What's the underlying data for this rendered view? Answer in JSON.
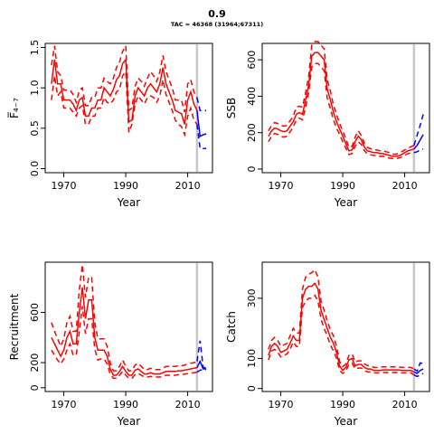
{
  "title": "0.9",
  "subtitle": "TAC = 46368 (31964;67311)",
  "colors": {
    "estimate": "#ff0000",
    "forecast": "#0000ff",
    "vline": "#c8c8c8",
    "axis": "#000000"
  },
  "chart_data": [
    {
      "type": "line",
      "xlabel": "Year",
      "ylabel": "F̅₄₋₇",
      "xlim": [
        1964,
        2018
      ],
      "ylim": [
        -0.05,
        1.55
      ],
      "xticks": [
        1970,
        1990,
        2010
      ],
      "yticks": [
        0.0,
        0.5,
        1.0,
        1.5
      ],
      "ytick_labels": [
        "0.0",
        "0.5",
        "1.0",
        "1.5"
      ],
      "vline": 2013,
      "series": [
        {
          "role": "estimate",
          "x": [
            1966,
            1967,
            1968,
            1969,
            1970,
            1971,
            1972,
            1973,
            1974,
            1975,
            1976,
            1977,
            1978,
            1979,
            1980,
            1981,
            1982,
            1983,
            1984,
            1985,
            1986,
            1987,
            1988,
            1989,
            1990,
            1991,
            1992,
            1993,
            1994,
            1995,
            1996,
            1997,
            1998,
            1999,
            2000,
            2001,
            2002,
            2003,
            2004,
            2005,
            2006,
            2007,
            2008,
            2009,
            2010,
            2011,
            2012,
            2013
          ],
          "y": [
            1.05,
            1.35,
            1.05,
            1.05,
            0.85,
            0.85,
            0.85,
            0.8,
            0.72,
            0.85,
            0.88,
            0.65,
            0.65,
            0.75,
            0.75,
            0.85,
            0.85,
            1.0,
            0.95,
            0.9,
            0.98,
            1.1,
            1.15,
            1.3,
            1.35,
            0.58,
            0.6,
            0.9,
            1.0,
            0.95,
            0.9,
            1.0,
            1.05,
            1.0,
            0.95,
            1.05,
            1.25,
            1.05,
            0.95,
            0.85,
            0.72,
            0.7,
            0.68,
            0.55,
            0.85,
            0.95,
            0.8,
            0.72
          ],
          "lower": [
            0.85,
            1.15,
            0.9,
            0.95,
            0.75,
            0.75,
            0.75,
            0.7,
            0.65,
            0.75,
            0.78,
            0.55,
            0.55,
            0.65,
            0.65,
            0.75,
            0.75,
            0.88,
            0.82,
            0.8,
            0.85,
            0.95,
            0.98,
            1.15,
            1.2,
            0.45,
            0.55,
            0.8,
            0.9,
            0.85,
            0.8,
            0.88,
            0.9,
            0.88,
            0.82,
            0.9,
            1.1,
            0.92,
            0.82,
            0.72,
            0.6,
            0.55,
            0.52,
            0.42,
            0.65,
            0.75,
            0.6,
            0.55
          ],
          "upper": [
            1.28,
            1.52,
            1.2,
            1.15,
            0.97,
            0.97,
            0.97,
            0.92,
            0.82,
            0.97,
            1.0,
            0.78,
            0.78,
            0.88,
            0.88,
            1.0,
            1.0,
            1.12,
            1.08,
            1.05,
            1.12,
            1.25,
            1.32,
            1.45,
            1.52,
            0.72,
            0.75,
            1.02,
            1.12,
            1.08,
            1.02,
            1.12,
            1.2,
            1.15,
            1.08,
            1.2,
            1.4,
            1.2,
            1.1,
            1.0,
            0.85,
            0.85,
            0.85,
            0.7,
            1.05,
            1.1,
            0.95,
            0.88
          ]
        },
        {
          "role": "forecast",
          "x": [
            2013,
            2014,
            2015,
            2016
          ],
          "y": [
            0.72,
            0.4,
            0.42,
            0.43
          ],
          "lower": [
            0.55,
            0.25,
            0.25,
            0.25
          ],
          "upper": [
            0.88,
            0.72,
            0.72,
            0.72
          ]
        }
      ]
    },
    {
      "type": "line",
      "xlabel": "Year",
      "ylabel": "SSB",
      "xlim": [
        1964,
        2018
      ],
      "ylim": [
        -20,
        690
      ],
      "xticks": [
        1970,
        1990,
        2010
      ],
      "yticks": [
        0,
        200,
        400,
        600
      ],
      "ytick_labels": [
        "0",
        "200",
        "400",
        "600"
      ],
      "vline": 2013,
      "series": [
        {
          "role": "estimate",
          "x": [
            1966,
            1967,
            1968,
            1969,
            1970,
            1971,
            1972,
            1973,
            1974,
            1975,
            1976,
            1977,
            1978,
            1979,
            1980,
            1981,
            1982,
            1983,
            1984,
            1985,
            1986,
            1987,
            1988,
            1989,
            1990,
            1991,
            1992,
            1993,
            1994,
            1995,
            1996,
            1997,
            1998,
            1999,
            2000,
            2001,
            2002,
            2003,
            2004,
            2005,
            2006,
            2007,
            2008,
            2009,
            2010,
            2011,
            2012,
            2013
          ],
          "y": [
            180,
            210,
            225,
            220,
            210,
            205,
            210,
            235,
            260,
            300,
            310,
            300,
            380,
            460,
            620,
            640,
            640,
            620,
            600,
            440,
            380,
            310,
            260,
            220,
            180,
            140,
            100,
            105,
            150,
            180,
            160,
            120,
            100,
            95,
            90,
            90,
            85,
            85,
            80,
            75,
            70,
            70,
            72,
            80,
            90,
            100,
            105,
            110
          ],
          "lower": [
            150,
            180,
            195,
            190,
            180,
            175,
            180,
            205,
            230,
            270,
            280,
            270,
            340,
            420,
            560,
            580,
            580,
            560,
            540,
            390,
            330,
            270,
            225,
            190,
            150,
            115,
            80,
            85,
            125,
            150,
            135,
            100,
            82,
            78,
            75,
            75,
            70,
            70,
            65,
            60,
            58,
            58,
            60,
            66,
            75,
            85,
            88,
            90
          ],
          "upper": [
            210,
            240,
            255,
            250,
            240,
            235,
            240,
            265,
            290,
            340,
            345,
            340,
            420,
            510,
            680,
            700,
            700,
            680,
            660,
            490,
            430,
            350,
            300,
            250,
            210,
            165,
            120,
            125,
            175,
            210,
            185,
            140,
            118,
            112,
            105,
            105,
            100,
            100,
            95,
            90,
            82,
            82,
            85,
            95,
            105,
            115,
            122,
            130
          ]
        },
        {
          "role": "forecast",
          "x": [
            2013,
            2014,
            2015,
            2016
          ],
          "y": [
            110,
            130,
            160,
            190
          ],
          "lower": [
            90,
            95,
            105,
            110
          ],
          "upper": [
            130,
            185,
            240,
            300
          ]
        }
      ]
    },
    {
      "type": "line",
      "xlabel": "Year",
      "ylabel": "Recruitment",
      "xlim": [
        1964,
        2018
      ],
      "ylim": [
        -30,
        1000
      ],
      "xticks": [
        1970,
        1990,
        2010
      ],
      "yticks": [
        0,
        200,
        600
      ],
      "ytick_labels": [
        "0",
        "200",
        "600"
      ],
      "vline": 2013,
      "series": [
        {
          "role": "estimate",
          "x": [
            1966,
            1967,
            1968,
            1969,
            1970,
            1971,
            1972,
            1973,
            1974,
            1975,
            1976,
            1977,
            1978,
            1979,
            1980,
            1981,
            1982,
            1983,
            1984,
            1985,
            1986,
            1987,
            1988,
            1989,
            1990,
            1991,
            1992,
            1993,
            1994,
            1995,
            1996,
            1997,
            1998,
            1999,
            2000,
            2001,
            2002,
            2003,
            2004,
            2005,
            2006,
            2007,
            2008,
            2009,
            2010,
            2011,
            2012,
            2013
          ],
          "y": [
            400,
            350,
            300,
            250,
            300,
            400,
            450,
            350,
            350,
            600,
            800,
            550,
            700,
            700,
            400,
            300,
            300,
            300,
            250,
            150,
            100,
            100,
            130,
            170,
            130,
            100,
            100,
            140,
            150,
            130,
            110,
            110,
            120,
            110,
            110,
            110,
            120,
            130,
            130,
            130,
            130,
            135,
            135,
            140,
            145,
            150,
            155,
            160
          ],
          "lower": [
            300,
            260,
            220,
            190,
            230,
            300,
            350,
            260,
            260,
            450,
            650,
            430,
            550,
            550,
            310,
            220,
            230,
            230,
            190,
            110,
            75,
            75,
            100,
            130,
            100,
            75,
            75,
            105,
            115,
            100,
            85,
            85,
            90,
            85,
            85,
            85,
            92,
            100,
            100,
            100,
            100,
            104,
            104,
            108,
            112,
            116,
            120,
            124
          ],
          "upper": [
            520,
            450,
            390,
            330,
            390,
            520,
            570,
            450,
            450,
            780,
            980,
            720,
            880,
            880,
            520,
            390,
            390,
            390,
            330,
            200,
            135,
            135,
            170,
            220,
            170,
            135,
            135,
            180,
            195,
            170,
            145,
            145,
            155,
            145,
            145,
            145,
            155,
            170,
            170,
            170,
            170,
            175,
            175,
            180,
            190,
            195,
            200,
            210
          ]
        },
        {
          "role": "forecast",
          "x": [
            2013,
            2014,
            2015,
            2016
          ],
          "y": [
            160,
            210,
            150,
            150
          ],
          "lower": [
            124,
            140,
            145,
            145
          ],
          "upper": [
            210,
            375,
            160,
            160
          ]
        }
      ]
    },
    {
      "type": "line",
      "xlabel": "Year",
      "ylabel": "Catch",
      "xlim": [
        1964,
        2018
      ],
      "ylim": [
        -10,
        420
      ],
      "xticks": [
        1970,
        1990,
        2010
      ],
      "yticks": [
        0,
        100,
        300
      ],
      "ytick_labels": [
        "0",
        "100",
        "300"
      ],
      "vline": 2013,
      "series": [
        {
          "role": "estimate",
          "x": [
            1966,
            1967,
            1968,
            1969,
            1970,
            1971,
            1972,
            1973,
            1974,
            1975,
            1976,
            1977,
            1978,
            1979,
            1980,
            1981,
            1982,
            1983,
            1984,
            1985,
            1986,
            1987,
            1988,
            1989,
            1990,
            1991,
            1992,
            1993,
            1994,
            1995,
            1996,
            1997,
            1998,
            1999,
            2000,
            2001,
            2002,
            2003,
            2004,
            2005,
            2006,
            2007,
            2008,
            2009,
            2010,
            2011,
            2012,
            2013
          ],
          "y": [
            110,
            140,
            150,
            140,
            120,
            125,
            130,
            150,
            175,
            160,
            160,
            300,
            330,
            340,
            340,
            350,
            330,
            260,
            230,
            200,
            170,
            150,
            120,
            75,
            60,
            70,
            95,
            100,
            75,
            80,
            80,
            70,
            65,
            65,
            60,
            60,
            60,
            62,
            62,
            62,
            62,
            62,
            62,
            60,
            60,
            60,
            60,
            55
          ],
          "lower": [
            95,
            125,
            130,
            120,
            105,
            110,
            115,
            130,
            155,
            140,
            140,
            270,
            290,
            300,
            300,
            310,
            290,
            230,
            200,
            175,
            145,
            125,
            100,
            60,
            50,
            58,
            80,
            85,
            65,
            68,
            68,
            60,
            55,
            55,
            52,
            52,
            52,
            53,
            53,
            53,
            53,
            53,
            53,
            52,
            52,
            52,
            52,
            45
          ],
          "upper": [
            130,
            160,
            170,
            160,
            140,
            145,
            150,
            175,
            200,
            185,
            185,
            330,
            370,
            380,
            385,
            395,
            370,
            290,
            260,
            225,
            195,
            175,
            140,
            90,
            72,
            82,
            110,
            115,
            88,
            92,
            92,
            82,
            76,
            76,
            70,
            70,
            70,
            72,
            72,
            72,
            72,
            72,
            72,
            70,
            70,
            70,
            70,
            65
          ]
        },
        {
          "role": "forecast",
          "x": [
            2013,
            2014,
            2015,
            2016
          ],
          "y": [
            55,
            50,
            60,
            65
          ],
          "lower": [
            45,
            40,
            45,
            50
          ],
          "upper": [
            65,
            58,
            85,
            83
          ]
        }
      ]
    }
  ]
}
